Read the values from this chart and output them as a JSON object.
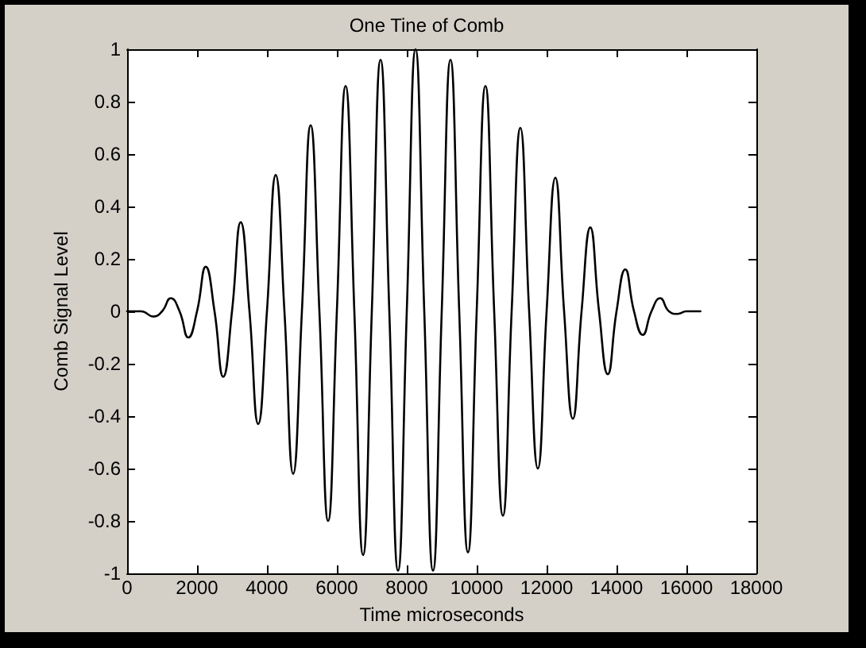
{
  "chart_data": {
    "type": "line",
    "title": "One Tine of Comb",
    "xlabel": "Time microseconds",
    "ylabel": "Comb Signal Level",
    "x": [
      0,
      400,
      750,
      1000,
      1250,
      1500,
      1750,
      2000,
      2250,
      2500,
      2750,
      3000,
      3250,
      3500,
      3750,
      4000,
      4250,
      4500,
      4750,
      5000,
      5250,
      5500,
      5750,
      6000,
      6250,
      6500,
      6750,
      7000,
      7250,
      7500,
      7750,
      8000,
      8250,
      8500,
      8750,
      9000,
      9250,
      9500,
      9750,
      10000,
      10250,
      10500,
      10750,
      11000,
      11250,
      11500,
      11750,
      12000,
      12250,
      12500,
      12750,
      13000,
      13250,
      13500,
      13750,
      14000,
      14250,
      14500,
      14750,
      15000,
      15250,
      15500,
      15750,
      16000,
      16400
    ],
    "series": [
      {
        "color": "#000000",
        "values": [
          0,
          0,
          -0.02,
          0,
          0.05,
          0,
          -0.1,
          0,
          0.17,
          0,
          -0.25,
          0,
          0.34,
          0,
          -0.43,
          0,
          0.52,
          0,
          -0.62,
          0,
          0.71,
          0,
          -0.8,
          0,
          0.86,
          0,
          -0.93,
          0,
          0.96,
          0,
          -0.99,
          0,
          1,
          0,
          -0.99,
          0,
          0.96,
          0,
          -0.92,
          0,
          0.86,
          0,
          -0.78,
          0,
          0.7,
          0,
          -0.6,
          0,
          0.51,
          0,
          -0.41,
          0,
          0.32,
          0,
          -0.24,
          0,
          0.16,
          0,
          -0.09,
          0,
          0.05,
          0,
          -0.01,
          0,
          0
        ]
      }
    ],
    "xlim": [
      0,
      18000
    ],
    "xticks": [
      0,
      2000,
      4000,
      6000,
      8000,
      10000,
      12000,
      14000,
      16000,
      18000
    ],
    "ylim": [
      -1,
      1
    ],
    "yticks": [
      -1,
      -0.8,
      -0.6,
      -0.4,
      -0.2,
      0,
      0.2,
      0.4,
      0.6,
      0.8,
      1
    ],
    "grid": false,
    "marker": "none",
    "line_style": "solid"
  }
}
